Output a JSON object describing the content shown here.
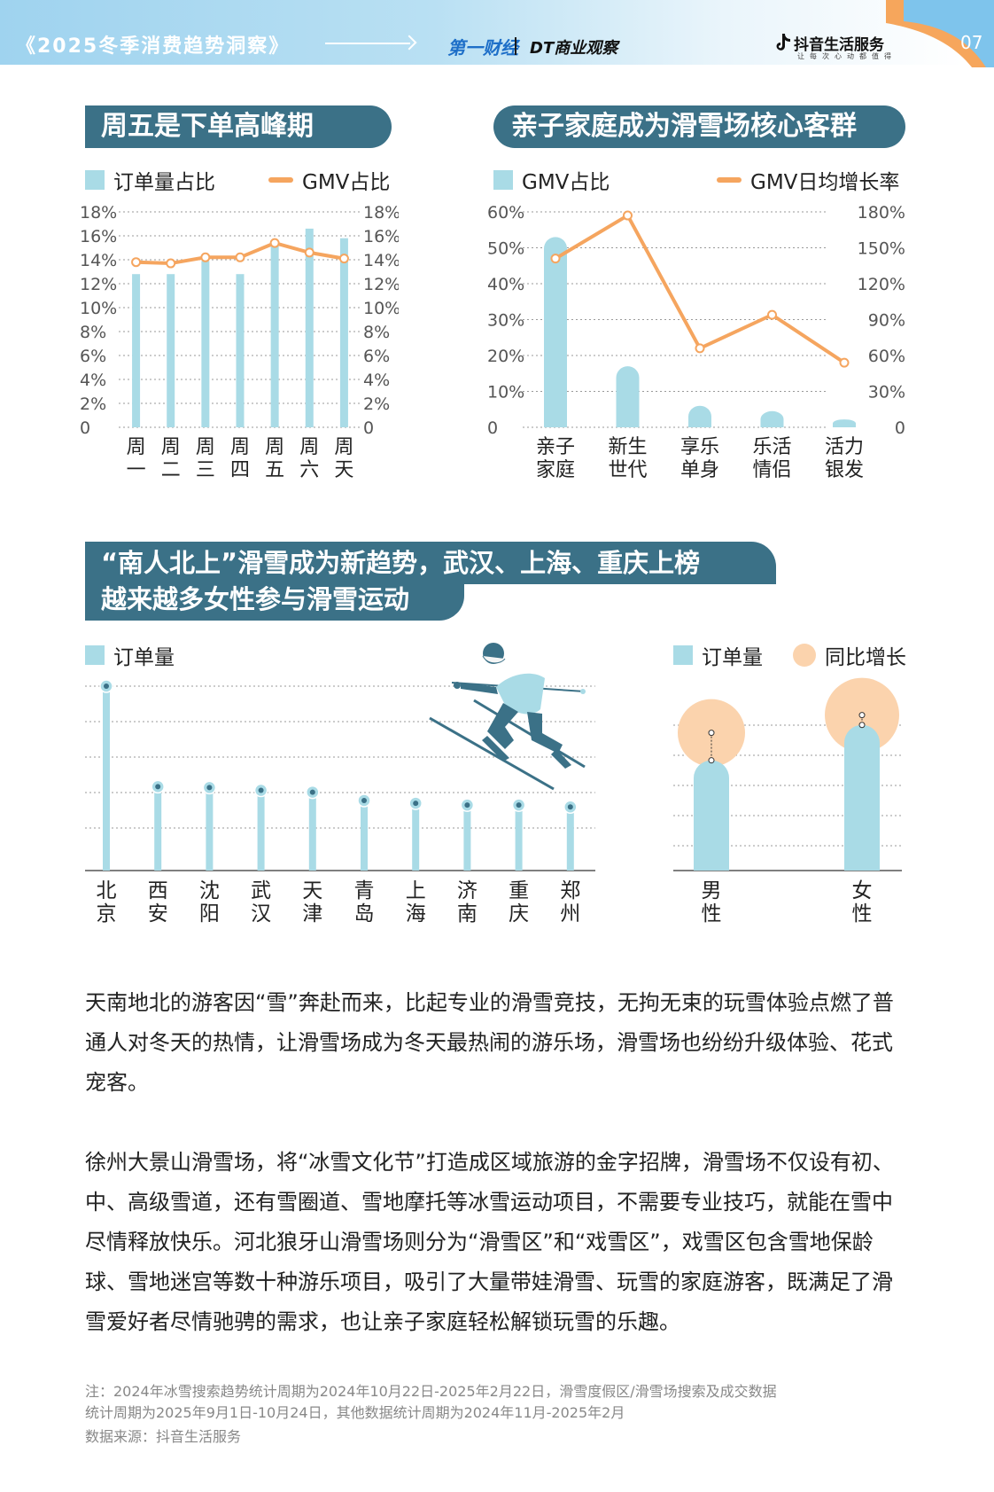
{
  "header": {
    "report_title": "《2025冬季消费趋势洞察》",
    "logo_1": "第一财经",
    "logo_2": "DT商业观察",
    "logo_3": "抖音生活服务",
    "logo_3_sub": "让每次心动都值得",
    "page_number": "07"
  },
  "colors": {
    "bar": "#a9dbe6",
    "line": "#f5a55f",
    "title_bg": "#3b7187",
    "bubble": "#fbd3ad",
    "topbar": "#9fd3ef"
  },
  "section1": {
    "title": "周五是下单高峰期",
    "legend": [
      "订单量占比",
      "GMV占比"
    ]
  },
  "section2": {
    "title": "亲子家庭成为滑雪场核心客群",
    "legend": [
      "GMV占比",
      "GMV日均增长率"
    ]
  },
  "section3": {
    "title_line1": "“南人北上”滑雪成为新趋势，武汉、上海、重庆上榜",
    "title_line2": "越来越多女性参与滑雪运动",
    "legend_left": "订单量",
    "legend_right": [
      "订单量",
      "同比增长"
    ]
  },
  "chart_data": [
    {
      "type": "bar",
      "categories": [
        "周一",
        "周二",
        "周三",
        "周四",
        "周五",
        "周六",
        "周天"
      ],
      "series": [
        {
          "name": "订单量占比",
          "type": "bar",
          "values": [
            12.8,
            12.8,
            13.9,
            12.8,
            15.3,
            16.6,
            15.8
          ]
        },
        {
          "name": "GMV占比",
          "type": "line",
          "values": [
            13.8,
            13.7,
            14.2,
            14.2,
            15.4,
            14.6,
            14.1
          ]
        }
      ],
      "y_left_ticks": [
        "18%",
        "16%",
        "14%",
        "12%",
        "10%",
        "8%",
        "6%",
        "4%",
        "2%",
        "0"
      ],
      "y_right_ticks": [
        "18%",
        "16%",
        "14%",
        "12%",
        "10%",
        "8%",
        "6%",
        "4%",
        "2%",
        "0"
      ],
      "ylim": [
        0,
        18
      ],
      "legend": "top",
      "grid": true
    },
    {
      "type": "bar",
      "categories": [
        "亲子家庭",
        "新生世代",
        "享乐单身",
        "乐活情侣",
        "活力银发"
      ],
      "series": [
        {
          "name": "GMV占比",
          "type": "bar",
          "values": [
            53,
            17,
            6,
            4.5,
            2.2
          ],
          "axis": "left"
        },
        {
          "name": "GMV日均增长率",
          "type": "line",
          "values": [
            141,
            177,
            66,
            94,
            54
          ],
          "axis": "right"
        }
      ],
      "y_left_ticks": [
        "60%",
        "50%",
        "40%",
        "30%",
        "20%",
        "10%",
        "0"
      ],
      "y_right_ticks": [
        "180%",
        "150%",
        "120%",
        "90%",
        "60%",
        "30%",
        "0"
      ],
      "ylim_left": [
        0,
        60
      ],
      "ylim_right": [
        0,
        180
      ],
      "legend": "top",
      "grid": true
    },
    {
      "type": "bar",
      "categories": [
        "北京",
        "西安",
        "沈阳",
        "武汉",
        "天津",
        "青岛",
        "上海",
        "济南",
        "重庆",
        "郑州"
      ],
      "series": [
        {
          "name": "订单量",
          "values": [
            100,
            45.5,
            45,
            43.5,
            42.5,
            38,
            36.5,
            35.5,
            35.5,
            34.5
          ]
        }
      ],
      "ylim": [
        0,
        100
      ],
      "legend": "top-left",
      "grid": true
    },
    {
      "type": "bar",
      "categories": [
        "男性",
        "女性"
      ],
      "series": [
        {
          "name": "订单量",
          "values": [
            56,
            74
          ]
        },
        {
          "name": "同比增长",
          "type": "bubble",
          "values": [
            70,
            79
          ]
        }
      ],
      "ylim": [
        0,
        100
      ],
      "legend": "top",
      "grid": true
    }
  ],
  "paragraphs": [
    "天南地北的游客因“雪”奔赴而来，比起专业的滑雪竞技，无拘无束的玩雪体验点燃了普通人对冬天的热情，让滑雪场成为冬天最热闹的游乐场，滑雪场也纷纷升级体验、花式宠客。",
    "徐州大景山滑雪场，将“冰雪文化节”打造成区域旅游的金字招牌，滑雪场不仅设有初、中、高级雪道，还有雪圈道、雪地摩托等冰雪运动项目，不需要专业技巧，就能在雪中尽情释放快乐。河北狼牙山滑雪场则分为“滑雪区”和“戏雪区”，戏雪区包含雪地保龄球、雪地迷宫等数十种游乐项目，吸引了大量带娃滑雪、玩雪的家庭游客，既满足了滑雪爱好者尽情驰骋的需求，也让亲子家庭轻松解锁玩雪的乐趣。"
  ],
  "notes": [
    "注：2024年冰雪搜索趋势统计周期为2024年10月22日-2025年2月22日，滑雪度假区/滑雪场搜索及成交数据",
    "统计周期为2025年9月1日-10月24日，其他数据统计周期为2024年11月-2025年2月",
    "数据来源：抖音生活服务"
  ]
}
